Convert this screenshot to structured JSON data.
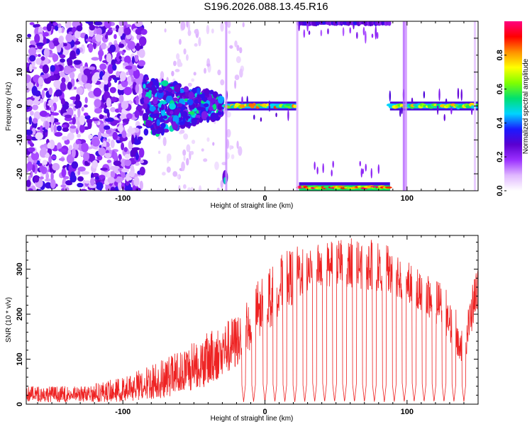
{
  "title": "S196.2026.088.13.45.R16",
  "chart_data": [
    {
      "type": "heatmap",
      "xlabel": "Height of straight line (km)",
      "ylabel": "Frequency (Hz)",
      "xlim": [
        -168,
        150
      ],
      "ylim": [
        -25,
        25
      ],
      "xticks": [
        -100,
        0,
        100
      ],
      "yticks": [
        -20,
        -10,
        0,
        10,
        20
      ],
      "colorbar": {
        "label": "Normalized spectral amplitude",
        "range": [
          0,
          1
        ],
        "ticks": [
          0.0,
          0.2,
          0.4,
          0.6,
          0.8
        ],
        "colors": [
          "#ffffff",
          "#e0b8ff",
          "#9b30ff",
          "#5a00d0",
          "#1a1aff",
          "#00d4ff",
          "#00e070",
          "#80ff00",
          "#ffff00",
          "#ff9000",
          "#ff0000",
          "#ff0080"
        ]
      },
      "regions": [
        {
          "name": "noisy scatter",
          "x": [
            -168,
            -85
          ],
          "freq": [
            -25,
            25
          ],
          "amplitude": 0.15
        },
        {
          "name": "converging signal",
          "x": [
            -85,
            -30
          ],
          "freq": [
            -8,
            8
          ],
          "amplitude": 0.3
        },
        {
          "name": "carrier band A",
          "x": [
            -28,
            22
          ],
          "freq_center": 0,
          "amplitude": 0.7
        },
        {
          "name": "aliased band low",
          "x": [
            24,
            88
          ],
          "freq_center": -24,
          "amplitude": 0.9
        },
        {
          "name": "aliased band high",
          "x": [
            24,
            88
          ],
          "freq_center": 24,
          "amplitude": 0.2
        },
        {
          "name": "carrier band B",
          "x": [
            88,
            150
          ],
          "freq_center": 0,
          "amplitude": 0.7
        },
        {
          "name": "isolated blob",
          "x": [
            -29,
            -27
          ],
          "freq_center": -22,
          "amplitude": 0.5
        }
      ]
    },
    {
      "type": "line",
      "xlabel": "Height of straight line (km)",
      "ylabel": "SNR (10 * v/v)",
      "xlim": [
        -168,
        150
      ],
      "ylim": [
        0,
        375
      ],
      "xticks": [
        -100,
        0,
        100
      ],
      "yticks": [
        0,
        100,
        200,
        300
      ],
      "series": [
        {
          "name": "SNR",
          "color": "#ee2222",
          "envelope_x": [
            -168,
            -130,
            -100,
            -80,
            -60,
            -40,
            -20,
            -10,
            0,
            10,
            20,
            30,
            40,
            60,
            80,
            90,
            100,
            110,
            120,
            130,
            140,
            145,
            150
          ],
          "envelope_upper": [
            40,
            40,
            60,
            90,
            120,
            160,
            200,
            260,
            300,
            330,
            350,
            360,
            365,
            370,
            365,
            360,
            320,
            300,
            280,
            250,
            160,
            250,
            320
          ],
          "envelope_lower": [
            5,
            5,
            5,
            10,
            20,
            40,
            80,
            120,
            150,
            200,
            220,
            250,
            260,
            260,
            250,
            240,
            230,
            200,
            180,
            140,
            80,
            150,
            220
          ],
          "dip_x": [
            -15,
            -8,
            0,
            7,
            14,
            21,
            28,
            35,
            42,
            49,
            56,
            63,
            70,
            77,
            84,
            91,
            98,
            105,
            112,
            119,
            126,
            133,
            140
          ],
          "dip_value": 5
        }
      ]
    }
  ]
}
